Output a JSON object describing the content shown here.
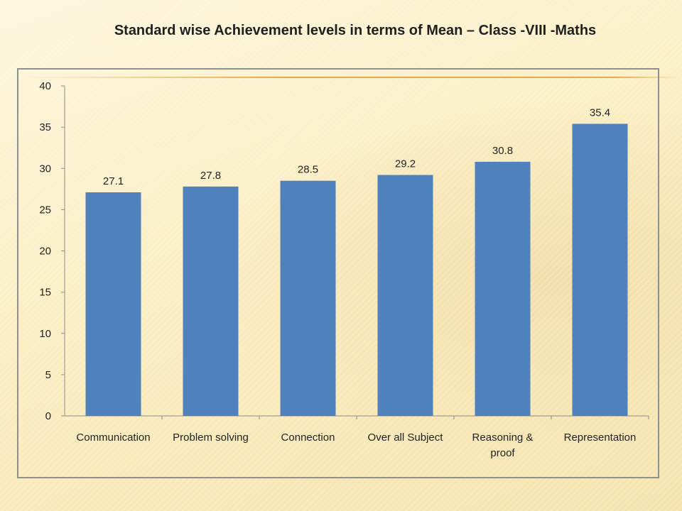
{
  "slide": {
    "title": "Standard wise Achievement levels in terms of Mean – Class -VIII -Maths"
  },
  "chart_data": {
    "type": "bar",
    "title": "",
    "xlabel": "",
    "ylabel": "",
    "categories": [
      "Communication",
      "Problem solving",
      "Connection",
      "Over all Subject",
      "Reasoning & proof",
      "Representation"
    ],
    "category_lines": [
      [
        "Communication"
      ],
      [
        "Problem solving"
      ],
      [
        "Connection"
      ],
      [
        "Over all Subject"
      ],
      [
        "Reasoning &",
        "proof"
      ],
      [
        "Representation"
      ]
    ],
    "values": [
      27.1,
      27.8,
      28.5,
      29.2,
      30.8,
      35.4
    ],
    "value_labels": [
      "27.1",
      "27.8",
      "28.5",
      "29.2",
      "30.8",
      "35.4"
    ],
    "ylim": [
      0,
      40
    ],
    "yticks": [
      0,
      5,
      10,
      15,
      20,
      25,
      30,
      35,
      40
    ],
    "bar_color": "#4f81bd",
    "grid": false,
    "legend": "none"
  }
}
